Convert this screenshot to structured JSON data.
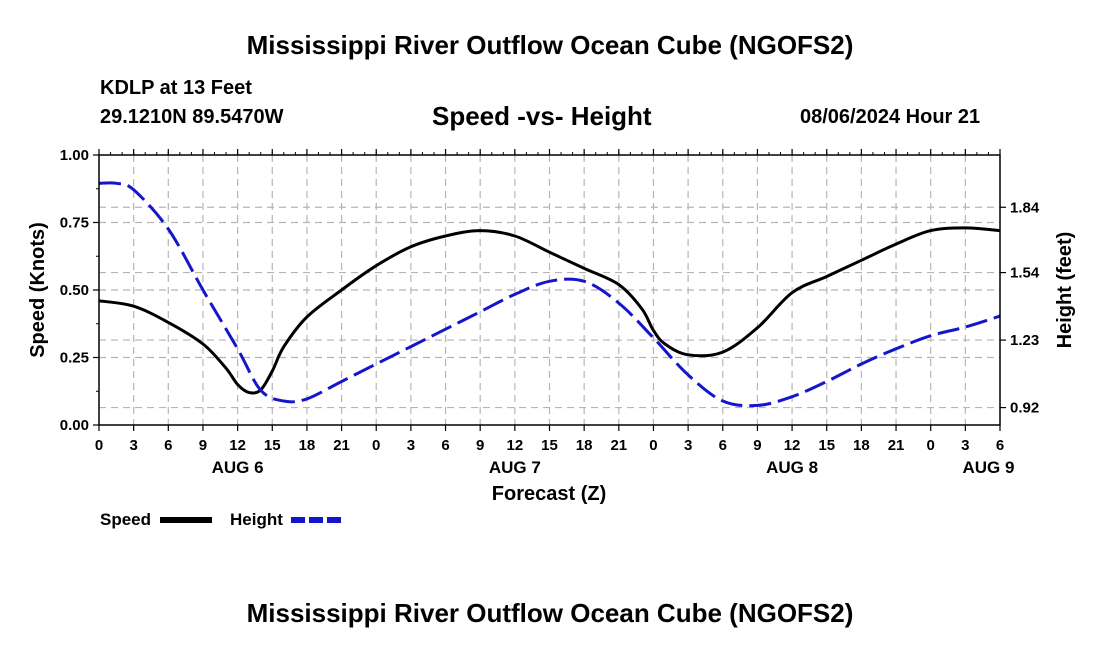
{
  "header": {
    "title": "Mississippi River Outflow Ocean Cube (NGOFS2)",
    "station": "KDLP at 13 Feet",
    "coords": "29.1210N  89.5470W",
    "subtitle": "Speed -vs- Height",
    "datetime": "08/06/2024 Hour 21"
  },
  "footer": {
    "title": "Mississippi River Outflow Ocean Cube (NGOFS2)"
  },
  "chart_data": {
    "type": "line",
    "title": "Speed -vs- Height",
    "xlabel": "Forecast (Z)",
    "ylabel": "Speed (Knots)",
    "y2label": "Height (feet)",
    "xlim": [
      0,
      78
    ],
    "ylim": [
      0,
      1.0
    ],
    "y2lim": [
      0.84,
      2.08
    ],
    "grid": true,
    "x_tick_labels": [
      "0",
      "3",
      "6",
      "9",
      "12",
      "15",
      "18",
      "21",
      "0",
      "3",
      "6",
      "9",
      "12",
      "15",
      "18",
      "21",
      "0",
      "3",
      "6",
      "9",
      "12",
      "15",
      "18",
      "21",
      "0",
      "3",
      "6"
    ],
    "day_labels": [
      {
        "label": "AUG 6",
        "x": 12
      },
      {
        "label": "AUG 7",
        "x": 36
      },
      {
        "label": "AUG 8",
        "x": 60
      },
      {
        "label": "AUG 9",
        "x": 77
      }
    ],
    "y_ticks": [
      0.0,
      0.25,
      0.5,
      0.75,
      1.0
    ],
    "y_tick_labels": [
      "0.00",
      "0.25",
      "0.50",
      "0.75",
      "1.00"
    ],
    "y2_ticks": [
      0.92,
      1.23,
      1.54,
      1.84
    ],
    "y2_tick_labels": [
      "0.92",
      "1.23",
      "1.54",
      "1.84"
    ],
    "legend": {
      "position": "bottom-left",
      "speed_label": "Speed",
      "height_label": "Height"
    },
    "series": [
      {
        "name": "Speed",
        "axis": "left",
        "color": "#000000",
        "dash": "solid",
        "x": [
          0,
          3,
          6,
          9,
          11,
          12,
          13,
          14,
          15,
          16,
          18,
          21,
          24,
          27,
          30,
          33,
          36,
          39,
          42,
          45,
          47,
          48,
          49,
          51,
          54,
          57,
          60,
          63,
          66,
          69,
          72,
          75,
          78
        ],
        "values": [
          0.46,
          0.44,
          0.38,
          0.3,
          0.21,
          0.15,
          0.12,
          0.13,
          0.2,
          0.29,
          0.4,
          0.5,
          0.59,
          0.66,
          0.7,
          0.72,
          0.7,
          0.64,
          0.58,
          0.52,
          0.43,
          0.35,
          0.3,
          0.26,
          0.27,
          0.36,
          0.49,
          0.55,
          0.61,
          0.67,
          0.72,
          0.73,
          0.72
        ]
      },
      {
        "name": "Height",
        "axis": "right",
        "color": "#1515cc",
        "dash": "dashed",
        "x": [
          0,
          1.5,
          3,
          6,
          9,
          12,
          14,
          16,
          18,
          21,
          24,
          27,
          30,
          33,
          36,
          39,
          42,
          45,
          48,
          51,
          54,
          57,
          60,
          63,
          66,
          69,
          72,
          75,
          78
        ],
        "values": [
          1.95,
          1.95,
          1.92,
          1.74,
          1.46,
          1.19,
          1.0,
          0.95,
          0.96,
          1.04,
          1.12,
          1.2,
          1.28,
          1.36,
          1.44,
          1.5,
          1.5,
          1.4,
          1.24,
          1.07,
          0.95,
          0.93,
          0.97,
          1.04,
          1.12,
          1.19,
          1.25,
          1.29,
          1.34
        ]
      }
    ]
  }
}
